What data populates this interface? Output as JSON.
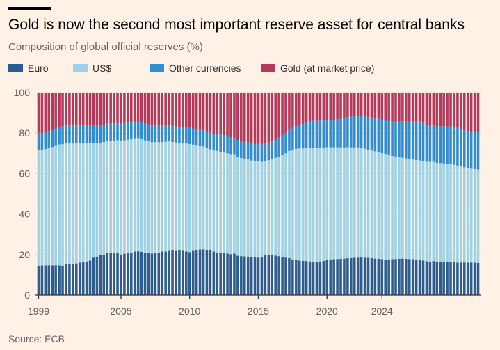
{
  "title": "Gold is now the second most important reserve asset for central banks",
  "subtitle": "Composition of global official reserves (%)",
  "source": "Source: ECB",
  "chart_data": {
    "type": "bar",
    "stacked": true,
    "x_start": 1999,
    "x_step_years": 0.25,
    "x_ticks": [
      "1999",
      "2005",
      "2010",
      "2015",
      "2020",
      "2024"
    ],
    "y_ticks": [
      "0",
      "20",
      "40",
      "60",
      "80",
      "100"
    ],
    "ylim": [
      0,
      100
    ],
    "grid": true,
    "legend_position": "top-left",
    "series": [
      {
        "name": "Euro",
        "color": "#2a5e93",
        "values": [
          14.5,
          14.6,
          14.6,
          14.7,
          14.6,
          14.7,
          14.6,
          14.5,
          15.5,
          15.5,
          15.4,
          15.6,
          16.0,
          16.2,
          16.6,
          17.0,
          18.5,
          19.0,
          19.6,
          20.0,
          21.0,
          20.8,
          20.6,
          21.0,
          20.0,
          20.4,
          20.6,
          21.0,
          21.5,
          21.6,
          21.3,
          21.0,
          20.8,
          20.5,
          20.8,
          21.0,
          21.5,
          21.5,
          21.8,
          22.0,
          21.8,
          22.0,
          21.9,
          21.5,
          21.2,
          21.8,
          22.3,
          22.5,
          22.6,
          22.4,
          22.0,
          21.5,
          21.0,
          21.0,
          20.8,
          20.5,
          20.2,
          20.5,
          19.4,
          19.2,
          19.1,
          19.0,
          18.8,
          18.7,
          18.5,
          18.6,
          19.8,
          20.0,
          20.0,
          19.5,
          19.2,
          18.8,
          18.5,
          18.2,
          17.5,
          17.2,
          17.0,
          16.9,
          16.8,
          16.6,
          16.5,
          16.5,
          16.6,
          16.8,
          17.2,
          17.5,
          17.7,
          17.8,
          17.9,
          18.0,
          18.2,
          18.3,
          18.4,
          18.5,
          18.6,
          18.5,
          18.4,
          18.2,
          18.0,
          17.9,
          17.7,
          17.5,
          17.6,
          17.7,
          17.8,
          17.9,
          18.0,
          17.9,
          17.8,
          17.7,
          17.6,
          17.6,
          17.0,
          16.7,
          16.5,
          16.8,
          16.5,
          16.3,
          16.4,
          16.3,
          16.3,
          16.2,
          16.0,
          16.1,
          16.1,
          16.0,
          16.0,
          16.0,
          15.9
        ]
      },
      {
        "name": "US$",
        "color": "#9dd3e8",
        "values": [
          57.2,
          57.0,
          57.5,
          58.0,
          58.5,
          59.0,
          59.8,
          60.0,
          59.5,
          59.6,
          59.8,
          59.5,
          59.3,
          59.0,
          58.6,
          58.0,
          56.5,
          56.0,
          55.6,
          55.6,
          55.0,
          55.2,
          55.6,
          55.5,
          56.2,
          56.0,
          56.0,
          56.0,
          55.6,
          55.6,
          55.7,
          55.4,
          55.3,
          55.0,
          54.7,
          54.5,
          54.0,
          54.2,
          54.2,
          53.6,
          53.5,
          53.2,
          53.0,
          53.4,
          53.4,
          52.5,
          51.5,
          51.0,
          50.8,
          50.2,
          50.0,
          49.9,
          50.2,
          49.8,
          49.7,
          49.5,
          49.1,
          48.7,
          48.6,
          48.5,
          48.2,
          48.0,
          47.7,
          47.3,
          47.5,
          47.2,
          46.5,
          46.6,
          47.0,
          48.3,
          49.2,
          50.2,
          51.5,
          53.0,
          54.0,
          55.0,
          55.4,
          55.5,
          56.0,
          56.2,
          56.3,
          56.2,
          56.2,
          56.0,
          55.8,
          55.5,
          55.3,
          55.2,
          55.0,
          54.9,
          54.8,
          54.6,
          54.6,
          54.4,
          54.0,
          53.8,
          53.3,
          53.2,
          53.0,
          52.6,
          52.4,
          52.2,
          51.4,
          51.0,
          50.6,
          50.2,
          49.8,
          49.6,
          49.3,
          49.2,
          49.1,
          48.9,
          49.0,
          49.1,
          49.3,
          49.0,
          48.8,
          48.9,
          48.6,
          48.5,
          48.4,
          48.1,
          48.0,
          47.4,
          47.0,
          46.6,
          46.4,
          46.2,
          46.1
        ]
      },
      {
        "name": "Other currencies",
        "color": "#2e8dd3",
        "values": [
          8.5,
          8.4,
          8.4,
          8.3,
          8.5,
          8.6,
          8.7,
          8.9,
          8.8,
          8.7,
          8.6,
          8.7,
          8.7,
          8.6,
          8.8,
          8.8,
          8.9,
          8.7,
          8.6,
          8.4,
          8.8,
          8.8,
          8.6,
          8.5,
          8.4,
          8.6,
          8.6,
          8.5,
          8.5,
          8.4,
          8.5,
          8.2,
          8.2,
          8.3,
          8.3,
          8.3,
          8.5,
          8.3,
          8.1,
          8.0,
          8.0,
          8.0,
          8.0,
          8.0,
          8.0,
          8.0,
          8.0,
          8.0,
          8.0,
          8.2,
          8.2,
          8.2,
          8.3,
          8.5,
          8.5,
          8.5,
          8.5,
          8.5,
          8.6,
          8.5,
          8.5,
          8.6,
          8.6,
          8.6,
          8.6,
          8.5,
          8.7,
          8.8,
          8.9,
          9.0,
          9.6,
          9.8,
          10.2,
          10.6,
          11.0,
          11.3,
          11.8,
          12.2,
          12.6,
          13.0,
          13.3,
          13.3,
          13.4,
          13.4,
          13.5,
          13.5,
          13.6,
          13.7,
          14.0,
          14.5,
          15.0,
          15.3,
          15.4,
          15.6,
          15.8,
          16.0,
          16.2,
          16.4,
          16.4,
          16.5,
          16.5,
          16.6,
          16.8,
          17.0,
          17.3,
          17.6,
          18.0,
          18.4,
          18.6,
          18.8,
          19.2,
          19.4,
          19.0,
          18.3,
          18.2,
          18.0,
          18.0,
          18.2,
          18.4,
          18.5,
          18.6,
          18.8,
          18.9,
          18.6,
          18.4,
          18.3,
          18.3,
          18.4,
          18.5
        ]
      },
      {
        "name": "Gold (at market price)",
        "color": "#b5385d",
        "values": [
          19.8,
          20.0,
          19.5,
          19.0,
          18.4,
          17.7,
          16.9,
          16.6,
          16.2,
          16.2,
          16.2,
          16.2,
          16.0,
          16.2,
          16.0,
          16.2,
          16.1,
          16.3,
          16.2,
          16.0,
          15.2,
          15.2,
          15.2,
          15.0,
          15.4,
          15.0,
          14.8,
          14.5,
          14.4,
          14.4,
          14.5,
          15.4,
          15.7,
          16.2,
          16.2,
          16.2,
          16.0,
          16.0,
          15.9,
          16.4,
          16.7,
          16.8,
          17.1,
          17.1,
          17.4,
          17.7,
          18.2,
          18.5,
          18.6,
          19.2,
          19.8,
          20.4,
          20.5,
          20.7,
          21.0,
          21.5,
          22.2,
          22.3,
          23.4,
          23.8,
          24.2,
          24.4,
          24.9,
          25.4,
          25.4,
          25.7,
          25.0,
          24.6,
          24.1,
          23.2,
          22.0,
          21.2,
          19.8,
          18.2,
          17.5,
          16.5,
          15.8,
          15.4,
          14.6,
          14.2,
          13.9,
          14.0,
          13.8,
          13.8,
          13.5,
          13.5,
          13.4,
          13.3,
          13.1,
          12.6,
          12.0,
          11.8,
          11.6,
          11.5,
          11.6,
          11.7,
          12.1,
          12.2,
          12.6,
          13.0,
          13.4,
          13.7,
          14.2,
          14.3,
          14.3,
          14.3,
          14.2,
          14.1,
          14.3,
          14.3,
          14.1,
          14.1,
          15.0,
          15.9,
          16.0,
          16.2,
          16.7,
          16.4,
          16.5,
          16.7,
          16.7,
          16.9,
          17.1,
          17.9,
          18.5,
          19.0,
          19.2,
          19.4,
          19.5
        ]
      }
    ]
  }
}
